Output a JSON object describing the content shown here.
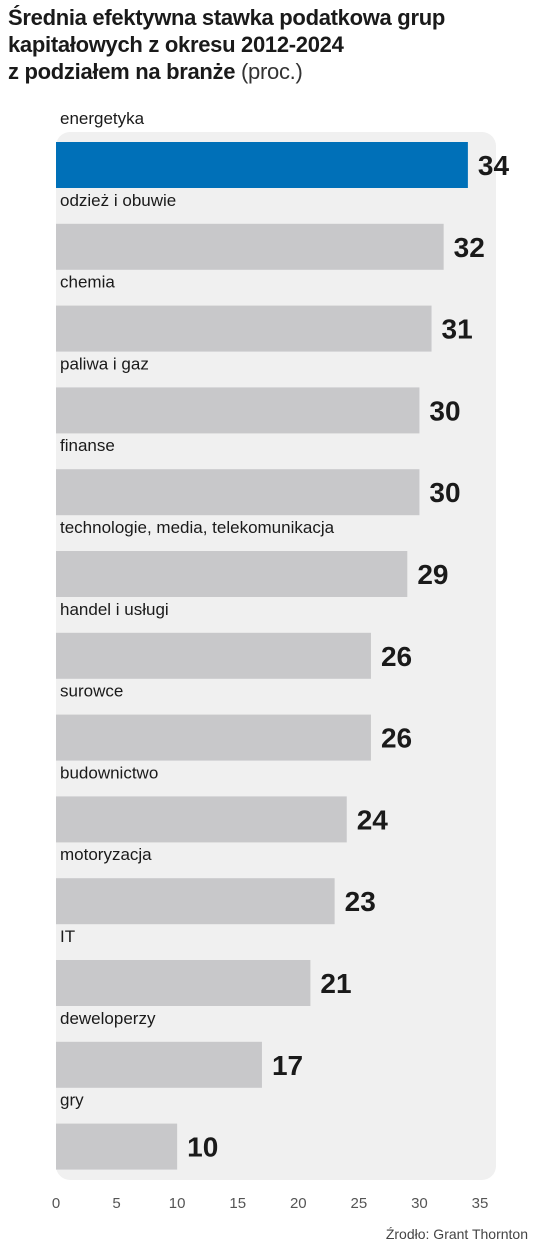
{
  "title": {
    "line1": "Średnia efektywna stawka podatkowa grup",
    "line2": "kapitałowych z okresu 2012-2024",
    "line3": "z podziałem na branże",
    "unit": "(proc.)"
  },
  "source": "Źrodło: Grant Thornton",
  "colors": {
    "highlight": "#0070b8",
    "bar": "#c8c8ca",
    "panel": "#f0f0f0",
    "value_text": "#1a1a1a"
  },
  "chart_data": {
    "type": "bar",
    "orientation": "horizontal",
    "categories": [
      "energetyka",
      "odzież i obuwie",
      "chemia",
      "paliwa i gaz",
      "finanse",
      "technologie, media, telekomunikacja",
      "handel i usługi",
      "surowce",
      "budownictwo",
      "motoryzacja",
      "IT",
      "deweloperzy",
      "gry"
    ],
    "values": [
      34,
      32,
      31,
      30,
      30,
      29,
      26,
      26,
      24,
      23,
      21,
      17,
      10
    ],
    "value_labels": [
      "34",
      "32",
      "31",
      "30",
      "30",
      "29",
      "26",
      "26",
      "24",
      "23",
      "21",
      "17",
      "10"
    ],
    "highlight_index": 0,
    "xlim": [
      0,
      35
    ],
    "xticks": [
      0,
      5,
      10,
      15,
      20,
      25,
      30,
      35
    ],
    "xtick_labels": [
      "0",
      "5",
      "10",
      "15",
      "20",
      "25",
      "30",
      "35"
    ],
    "grid": false
  }
}
